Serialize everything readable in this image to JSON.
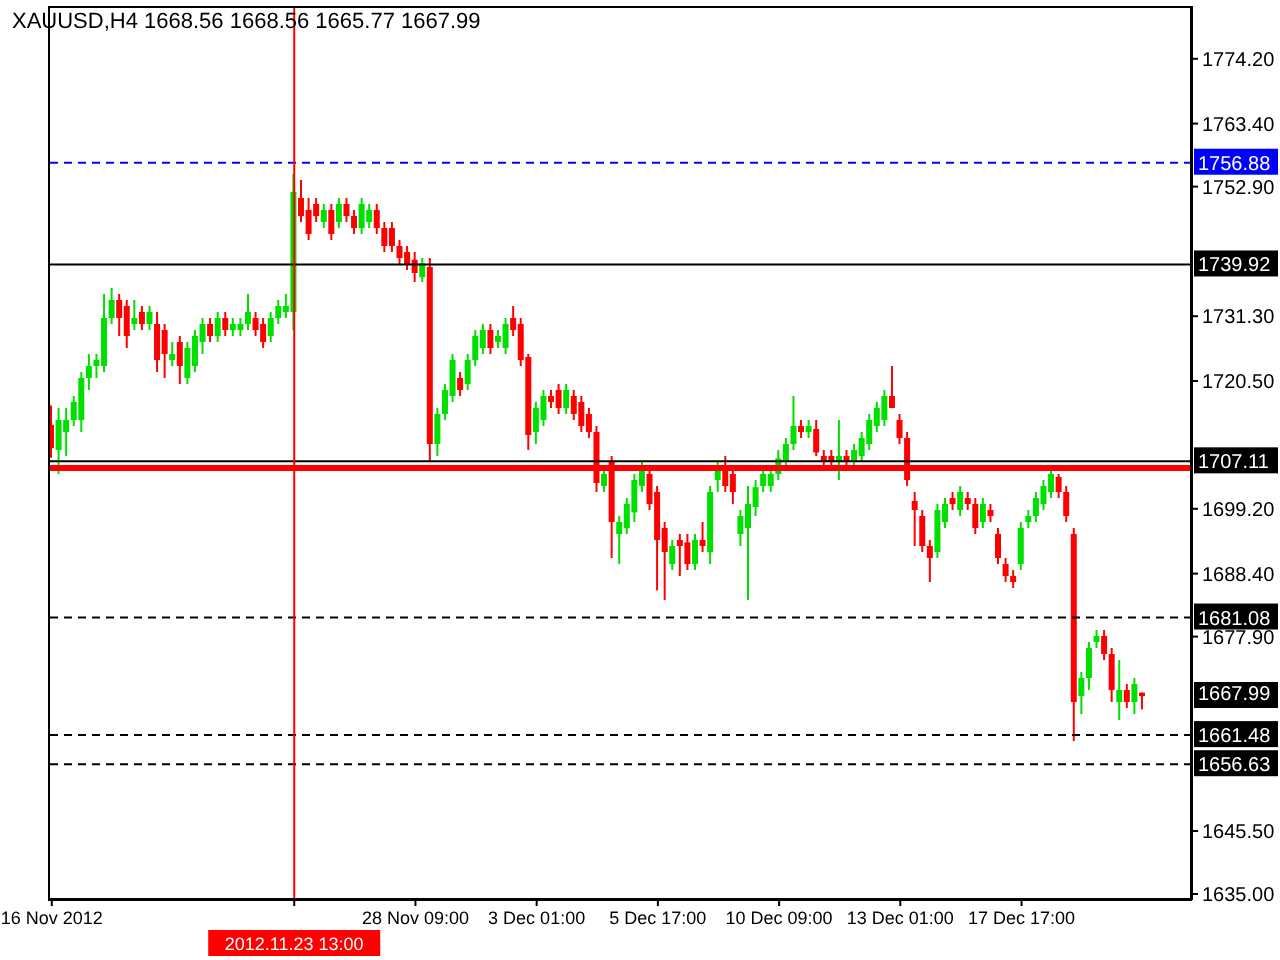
{
  "chart_data": {
    "type": "candlestick",
    "title": "XAUUSD,H4",
    "subtitle": "1668.56 1668.56 1665.77 1667.99",
    "categories": [
      "16 Nov 2012",
      null,
      null,
      null,
      null,
      null,
      null,
      null,
      null,
      null,
      null,
      null,
      null,
      null,
      null,
      null,
      null,
      null,
      null,
      null,
      null,
      null,
      null,
      null,
      null,
      null,
      null,
      null,
      null,
      null,
      null,
      null,
      "2012.11.23 13:00",
      null,
      null,
      null,
      null,
      null,
      null,
      null,
      null,
      null,
      null,
      null,
      null,
      null,
      null,
      null,
      "28 Nov 09:00",
      null,
      null,
      null,
      null,
      null,
      null,
      null,
      null,
      null,
      null,
      null,
      null,
      null,
      null,
      null,
      "3 Dec 01:00",
      null,
      null,
      null,
      null,
      null,
      null,
      null,
      null,
      null,
      null,
      null,
      null,
      null,
      null,
      null,
      "5 Dec 17:00",
      null,
      null,
      null,
      null,
      null,
      null,
      null,
      null,
      null,
      null,
      null,
      null,
      null,
      null,
      null,
      "10 Dec 09:00",
      null,
      null,
      null,
      null,
      null,
      null,
      null,
      null,
      null,
      null,
      null,
      null,
      null,
      null,
      null,
      "13 Dec 01:00",
      null,
      null,
      null,
      null,
      null,
      null,
      null,
      null,
      null,
      null,
      null,
      null,
      null,
      null,
      null,
      "17 Dec 17:00",
      null,
      null,
      null,
      null,
      null,
      null,
      null,
      null,
      null,
      null,
      null,
      null,
      null,
      null,
      null,
      null,
      null,
      null,
      null,
      null,
      null,
      null
    ],
    "ohlc": [
      [
        1713.2,
        1716.4,
        1707.7,
        1709.3
      ],
      [
        1709,
        1716,
        1705,
        1714
      ],
      [
        1712,
        1716,
        1708,
        1714
      ],
      [
        1714,
        1718,
        1713,
        1717
      ],
      [
        1714,
        1722,
        1712,
        1721
      ],
      [
        1721,
        1725,
        1719,
        1723
      ],
      [
        1723,
        1725,
        1721,
        1724
      ],
      [
        1723,
        1735,
        1722,
        1731
      ],
      [
        1731,
        1736,
        1730,
        1734
      ],
      [
        1734,
        1735,
        1728,
        1731
      ],
      [
        1733,
        1734,
        1726,
        1728
      ],
      [
        1730,
        1734,
        1729,
        1731
      ],
      [
        1732,
        1733,
        1729,
        1730
      ],
      [
        1730,
        1733,
        1729,
        1732
      ],
      [
        1730,
        1732,
        1722,
        1724
      ],
      [
        1729,
        1730,
        1721,
        1725
      ],
      [
        1724,
        1727,
        1723,
        1725
      ],
      [
        1727,
        1728,
        1720,
        1723
      ],
      [
        1721,
        1727,
        1720,
        1726
      ],
      [
        1723,
        1729,
        1722,
        1728
      ],
      [
        1727,
        1731,
        1725,
        1730
      ],
      [
        1730,
        1731,
        1727,
        1728
      ],
      [
        1728,
        1732,
        1727,
        1731
      ],
      [
        1731,
        1732,
        1728,
        1729
      ],
      [
        1729,
        1731,
        1728,
        1730
      ],
      [
        1729,
        1731,
        1728,
        1730
      ],
      [
        1730,
        1735,
        1729,
        1732
      ],
      [
        1731,
        1732,
        1728,
        1729
      ],
      [
        1730,
        1731,
        1726,
        1727
      ],
      [
        1728,
        1732,
        1727,
        1731
      ],
      [
        1731,
        1734,
        1730,
        1733
      ],
      [
        1732,
        1735,
        1731,
        1733
      ],
      [
        1732,
        1755,
        1729,
        1752
      ],
      [
        1751,
        1754,
        1747,
        1748
      ],
      [
        1749,
        1751,
        1744,
        1745
      ],
      [
        1750,
        1751,
        1747,
        1748
      ],
      [
        1747,
        1750,
        1746,
        1749
      ],
      [
        1749,
        1750,
        1744,
        1745
      ],
      [
        1747,
        1751,
        1746,
        1750
      ],
      [
        1750,
        1751,
        1747,
        1748
      ],
      [
        1748,
        1749,
        1745,
        1746
      ],
      [
        1746,
        1751,
        1745,
        1750
      ],
      [
        1747,
        1750,
        1746,
        1749
      ],
      [
        1749,
        1750,
        1745,
        1746
      ],
      [
        1746,
        1747,
        1742,
        1743
      ],
      [
        1746,
        1747,
        1742,
        1743
      ],
      [
        1743,
        1744,
        1740,
        1741
      ],
      [
        1742,
        1743,
        1739,
        1740
      ],
      [
        1740.7,
        1742,
        1737,
        1738.5
      ],
      [
        1737.8,
        1741,
        1737,
        1740.1
      ],
      [
        1739.5,
        1741,
        1707,
        1710
      ],
      [
        1710,
        1716,
        1708,
        1715
      ],
      [
        1715,
        1720,
        1714,
        1719
      ],
      [
        1718,
        1725,
        1717,
        1724
      ],
      [
        1721,
        1722,
        1718,
        1719
      ],
      [
        1720,
        1725,
        1719,
        1724
      ],
      [
        1724,
        1729,
        1723,
        1728
      ],
      [
        1726,
        1730,
        1725,
        1729
      ],
      [
        1729,
        1730,
        1725,
        1726
      ],
      [
        1727,
        1729,
        1726,
        1728
      ],
      [
        1726,
        1731,
        1725,
        1730
      ],
      [
        1731,
        1733,
        1728,
        1729
      ],
      [
        1730,
        1731,
        1723,
        1724
      ],
      [
        1724.5,
        1725,
        1709,
        1711.5
      ],
      [
        1712,
        1717,
        1710,
        1716
      ],
      [
        1714,
        1719,
        1713,
        1718
      ],
      [
        1718,
        1719,
        1716,
        1717
      ],
      [
        1719,
        1720,
        1715,
        1716
      ],
      [
        1716,
        1720,
        1715,
        1719
      ],
      [
        1718,
        1719,
        1714,
        1715
      ],
      [
        1717,
        1718,
        1712,
        1713
      ],
      [
        1715,
        1716,
        1711,
        1712
      ],
      [
        1712,
        1713,
        1702,
        1703.5
      ],
      [
        1703,
        1706,
        1702,
        1705
      ],
      [
        1707,
        1708,
        1691,
        1697
      ],
      [
        1695,
        1698,
        1690,
        1697
      ],
      [
        1696,
        1701,
        1695,
        1700
      ],
      [
        1698.6,
        1705,
        1697,
        1704
      ],
      [
        1703,
        1707,
        1702,
        1706
      ],
      [
        1705,
        1706,
        1699,
        1700
      ],
      [
        1702,
        1703,
        1685.6,
        1694
      ],
      [
        1696,
        1697,
        1684,
        1692
      ],
      [
        1690,
        1694,
        1689,
        1693
      ],
      [
        1694,
        1695,
        1688,
        1693
      ],
      [
        1693.6,
        1695,
        1689,
        1690
      ],
      [
        1690,
        1695,
        1689,
        1694
      ],
      [
        1694,
        1697,
        1692,
        1693
      ],
      [
        1692,
        1703,
        1690,
        1702
      ],
      [
        1704,
        1707,
        1702,
        1706
      ],
      [
        1706,
        1708,
        1702,
        1703
      ],
      [
        1705,
        1706,
        1700,
        1702
      ],
      [
        1695,
        1699,
        1693,
        1698
      ],
      [
        1696,
        1703,
        1684,
        1700
      ],
      [
        1699.5,
        1704,
        1698,
        1702.8
      ],
      [
        1703,
        1706,
        1702,
        1705
      ],
      [
        1703,
        1706,
        1702,
        1705
      ],
      [
        1705,
        1709,
        1704,
        1707.6
      ],
      [
        1707,
        1711,
        1706,
        1710
      ],
      [
        1710,
        1718,
        1709,
        1713
      ],
      [
        1713,
        1714,
        1711,
        1712
      ],
      [
        1712,
        1714,
        1711,
        1713
      ],
      [
        1712.5,
        1714,
        1708,
        1708.6
      ],
      [
        1708,
        1709,
        1706,
        1707
      ],
      [
        1708,
        1709,
        1706,
        1707
      ],
      [
        1707,
        1714,
        1704,
        1708
      ],
      [
        1708,
        1709,
        1706,
        1707
      ],
      [
        1707,
        1710,
        1706,
        1709
      ],
      [
        1708,
        1712,
        1707,
        1711
      ],
      [
        1710,
        1715,
        1709,
        1714
      ],
      [
        1713,
        1717,
        1712,
        1716
      ],
      [
        1714,
        1719,
        1713,
        1718
      ],
      [
        1718,
        1723,
        1716,
        1716
      ],
      [
        1714,
        1715,
        1710,
        1711
      ],
      [
        1711,
        1712,
        1703,
        1704
      ],
      [
        1700.5,
        1702,
        1693,
        1699
      ],
      [
        1698,
        1699,
        1692,
        1693
      ],
      [
        1693,
        1694,
        1687,
        1691
      ],
      [
        1692,
        1700,
        1691,
        1699
      ],
      [
        1697,
        1701,
        1696,
        1700
      ],
      [
        1701,
        1702,
        1699,
        1700
      ],
      [
        1699,
        1703,
        1698,
        1702
      ],
      [
        1701,
        1702,
        1699,
        1700
      ],
      [
        1700,
        1701,
        1695,
        1696
      ],
      [
        1697,
        1701,
        1696,
        1700
      ],
      [
        1699,
        1700,
        1697,
        1698
      ],
      [
        1695,
        1696,
        1690,
        1691
      ],
      [
        1690,
        1691,
        1687,
        1688
      ],
      [
        1688,
        1689,
        1686,
        1687
      ],
      [
        1690,
        1697,
        1689,
        1696
      ],
      [
        1697,
        1699,
        1696,
        1698
      ],
      [
        1698,
        1702,
        1697,
        1701
      ],
      [
        1700,
        1704,
        1699,
        1703
      ],
      [
        1702,
        1706,
        1701,
        1705
      ],
      [
        1704.5,
        1705,
        1701,
        1702
      ],
      [
        1702,
        1703,
        1697,
        1698
      ],
      [
        1695,
        1696,
        1660.5,
        1667
      ],
      [
        1668,
        1672,
        1665,
        1671
      ],
      [
        1671,
        1677,
        1669,
        1676
      ],
      [
        1677,
        1679,
        1676,
        1678
      ],
      [
        1678,
        1679,
        1674,
        1675
      ],
      [
        1675,
        1676,
        1667,
        1669
      ],
      [
        1667,
        1674,
        1664,
        1669
      ],
      [
        1669,
        1670,
        1666,
        1667
      ],
      [
        1667,
        1671,
        1665,
        1670
      ],
      [
        1668.56,
        1668.56,
        1665.77,
        1667.99
      ],
      null,
      null,
      null,
      null,
      null,
      null
    ],
    "colors": [
      "#ff0000",
      "#00e000",
      "#00e000",
      "#00e000",
      "#00e000",
      "#00e000",
      "#00e000",
      "#00e000",
      "#00e000",
      "#ff0000",
      "#ff0000",
      "#00e000",
      "#ff0000",
      "#00e000",
      "#ff0000",
      "#ff0000",
      "#00e000",
      "#ff0000",
      "#00e000",
      "#00e000",
      "#00e000",
      "#ff0000",
      "#00e000",
      "#ff0000",
      "#00e000",
      "#00e000",
      "#00e000",
      "#ff0000",
      "#ff0000",
      "#00e000",
      "#00e000",
      "#00e000",
      "#00e000",
      "#ff0000",
      "#ff0000",
      "#ff0000",
      "#00e000",
      "#ff0000",
      "#00e000",
      "#ff0000",
      "#ff0000",
      "#00e000",
      "#00e000",
      "#ff0000",
      "#ff0000",
      "#ff0000",
      "#ff0000",
      "#ff0000",
      "#ff0000",
      "#00e000",
      "#ff0000",
      "#00e000",
      "#00e000",
      "#00e000",
      "#ff0000",
      "#00e000",
      "#00e000",
      "#00e000",
      "#ff0000",
      "#00e000",
      "#00e000",
      "#ff0000",
      "#ff0000",
      "#ff0000",
      "#00e000",
      "#00e000",
      "#ff0000",
      "#ff0000",
      "#00e000",
      "#ff0000",
      "#ff0000",
      "#ff0000",
      "#ff0000",
      "#00e000",
      "#ff0000",
      "#00e000",
      "#00e000",
      "#00e000",
      "#00e000",
      "#ff0000",
      "#ff0000",
      "#ff0000",
      "#00e000",
      "#ff0000",
      "#ff0000",
      "#00e000",
      "#ff0000",
      "#00e000",
      "#00e000",
      "#ff0000",
      "#ff0000",
      "#00e000",
      "#00e000",
      "#00e000",
      "#00e000",
      "#00e000",
      "#00e000",
      "#00e000",
      "#00e000",
      "#ff0000",
      "#00e000",
      "#ff0000",
      "#ff0000",
      "#ff0000",
      "#00e000",
      "#ff0000",
      "#00e000",
      "#00e000",
      "#00e000",
      "#00e000",
      "#00e000",
      "#ff0000",
      "#ff0000",
      "#ff0000",
      "#ff0000",
      "#ff0000",
      "#ff0000",
      "#00e000",
      "#00e000",
      "#ff0000",
      "#00e000",
      "#ff0000",
      "#ff0000",
      "#00e000",
      "#ff0000",
      "#ff0000",
      "#ff0000",
      "#ff0000",
      "#00e000",
      "#00e000",
      "#00e000",
      "#00e000",
      "#00e000",
      "#ff0000",
      "#ff0000",
      "#ff0000",
      "#00e000",
      "#00e000",
      "#00e000",
      "#ff0000",
      "#ff0000",
      "#00e000",
      "#ff0000",
      "#00e000",
      "#ff0000",
      null,
      null,
      null,
      null,
      null,
      null
    ],
    "ylim": [
      1634,
      1783
    ],
    "yticks": [
      {
        "value": 1774.2,
        "label": "1774.20"
      },
      {
        "value": 1763.4,
        "label": "1763.40"
      },
      {
        "value": 1752.9,
        "label": "1752.90"
      },
      {
        "value": 1731.3,
        "label": "1731.30"
      },
      {
        "value": 1720.5,
        "label": "1720.50"
      },
      {
        "value": 1699.2,
        "label": "1699.20"
      },
      {
        "value": 1688.4,
        "label": "1688.40"
      },
      {
        "value": 1677.9,
        "label": "1677.90"
      },
      {
        "value": 1645.5,
        "label": "1645.50"
      },
      {
        "value": 1635,
        "label": "1635.00"
      }
    ],
    "ref_lines": [
      {
        "axis": "y",
        "value": 1756.88,
        "label": "1756.88",
        "color": "#0000ff",
        "line_style": "dashed"
      },
      {
        "axis": "y",
        "value": 1739.92,
        "label": "1739.92",
        "color": "#000000",
        "line_style": "solid"
      },
      {
        "axis": "y",
        "value": 1707.11,
        "label": "1707.11",
        "color": "#000000",
        "line_style": "solid"
      },
      {
        "axis": "y",
        "value": 1706,
        "color": "#ff0000",
        "line_style": "solid"
      },
      {
        "axis": "y",
        "value": 1681.08,
        "label": "1681.08",
        "color": "#000000",
        "line_style": "dashed"
      },
      {
        "axis": "y",
        "value": 1661.48,
        "label": "1661.48",
        "color": "#000000",
        "line_style": "dashed"
      },
      {
        "axis": "y",
        "value": 1656.63,
        "label": "1656.63",
        "color": "#000000",
        "line_style": "dashed"
      },
      {
        "axis": "x",
        "value": "2012.11.23 13:00",
        "color": "#ff0000",
        "line_style": "solid"
      }
    ],
    "annotations": [
      "1667.99"
    ],
    "grid": false,
    "legend": false
  }
}
